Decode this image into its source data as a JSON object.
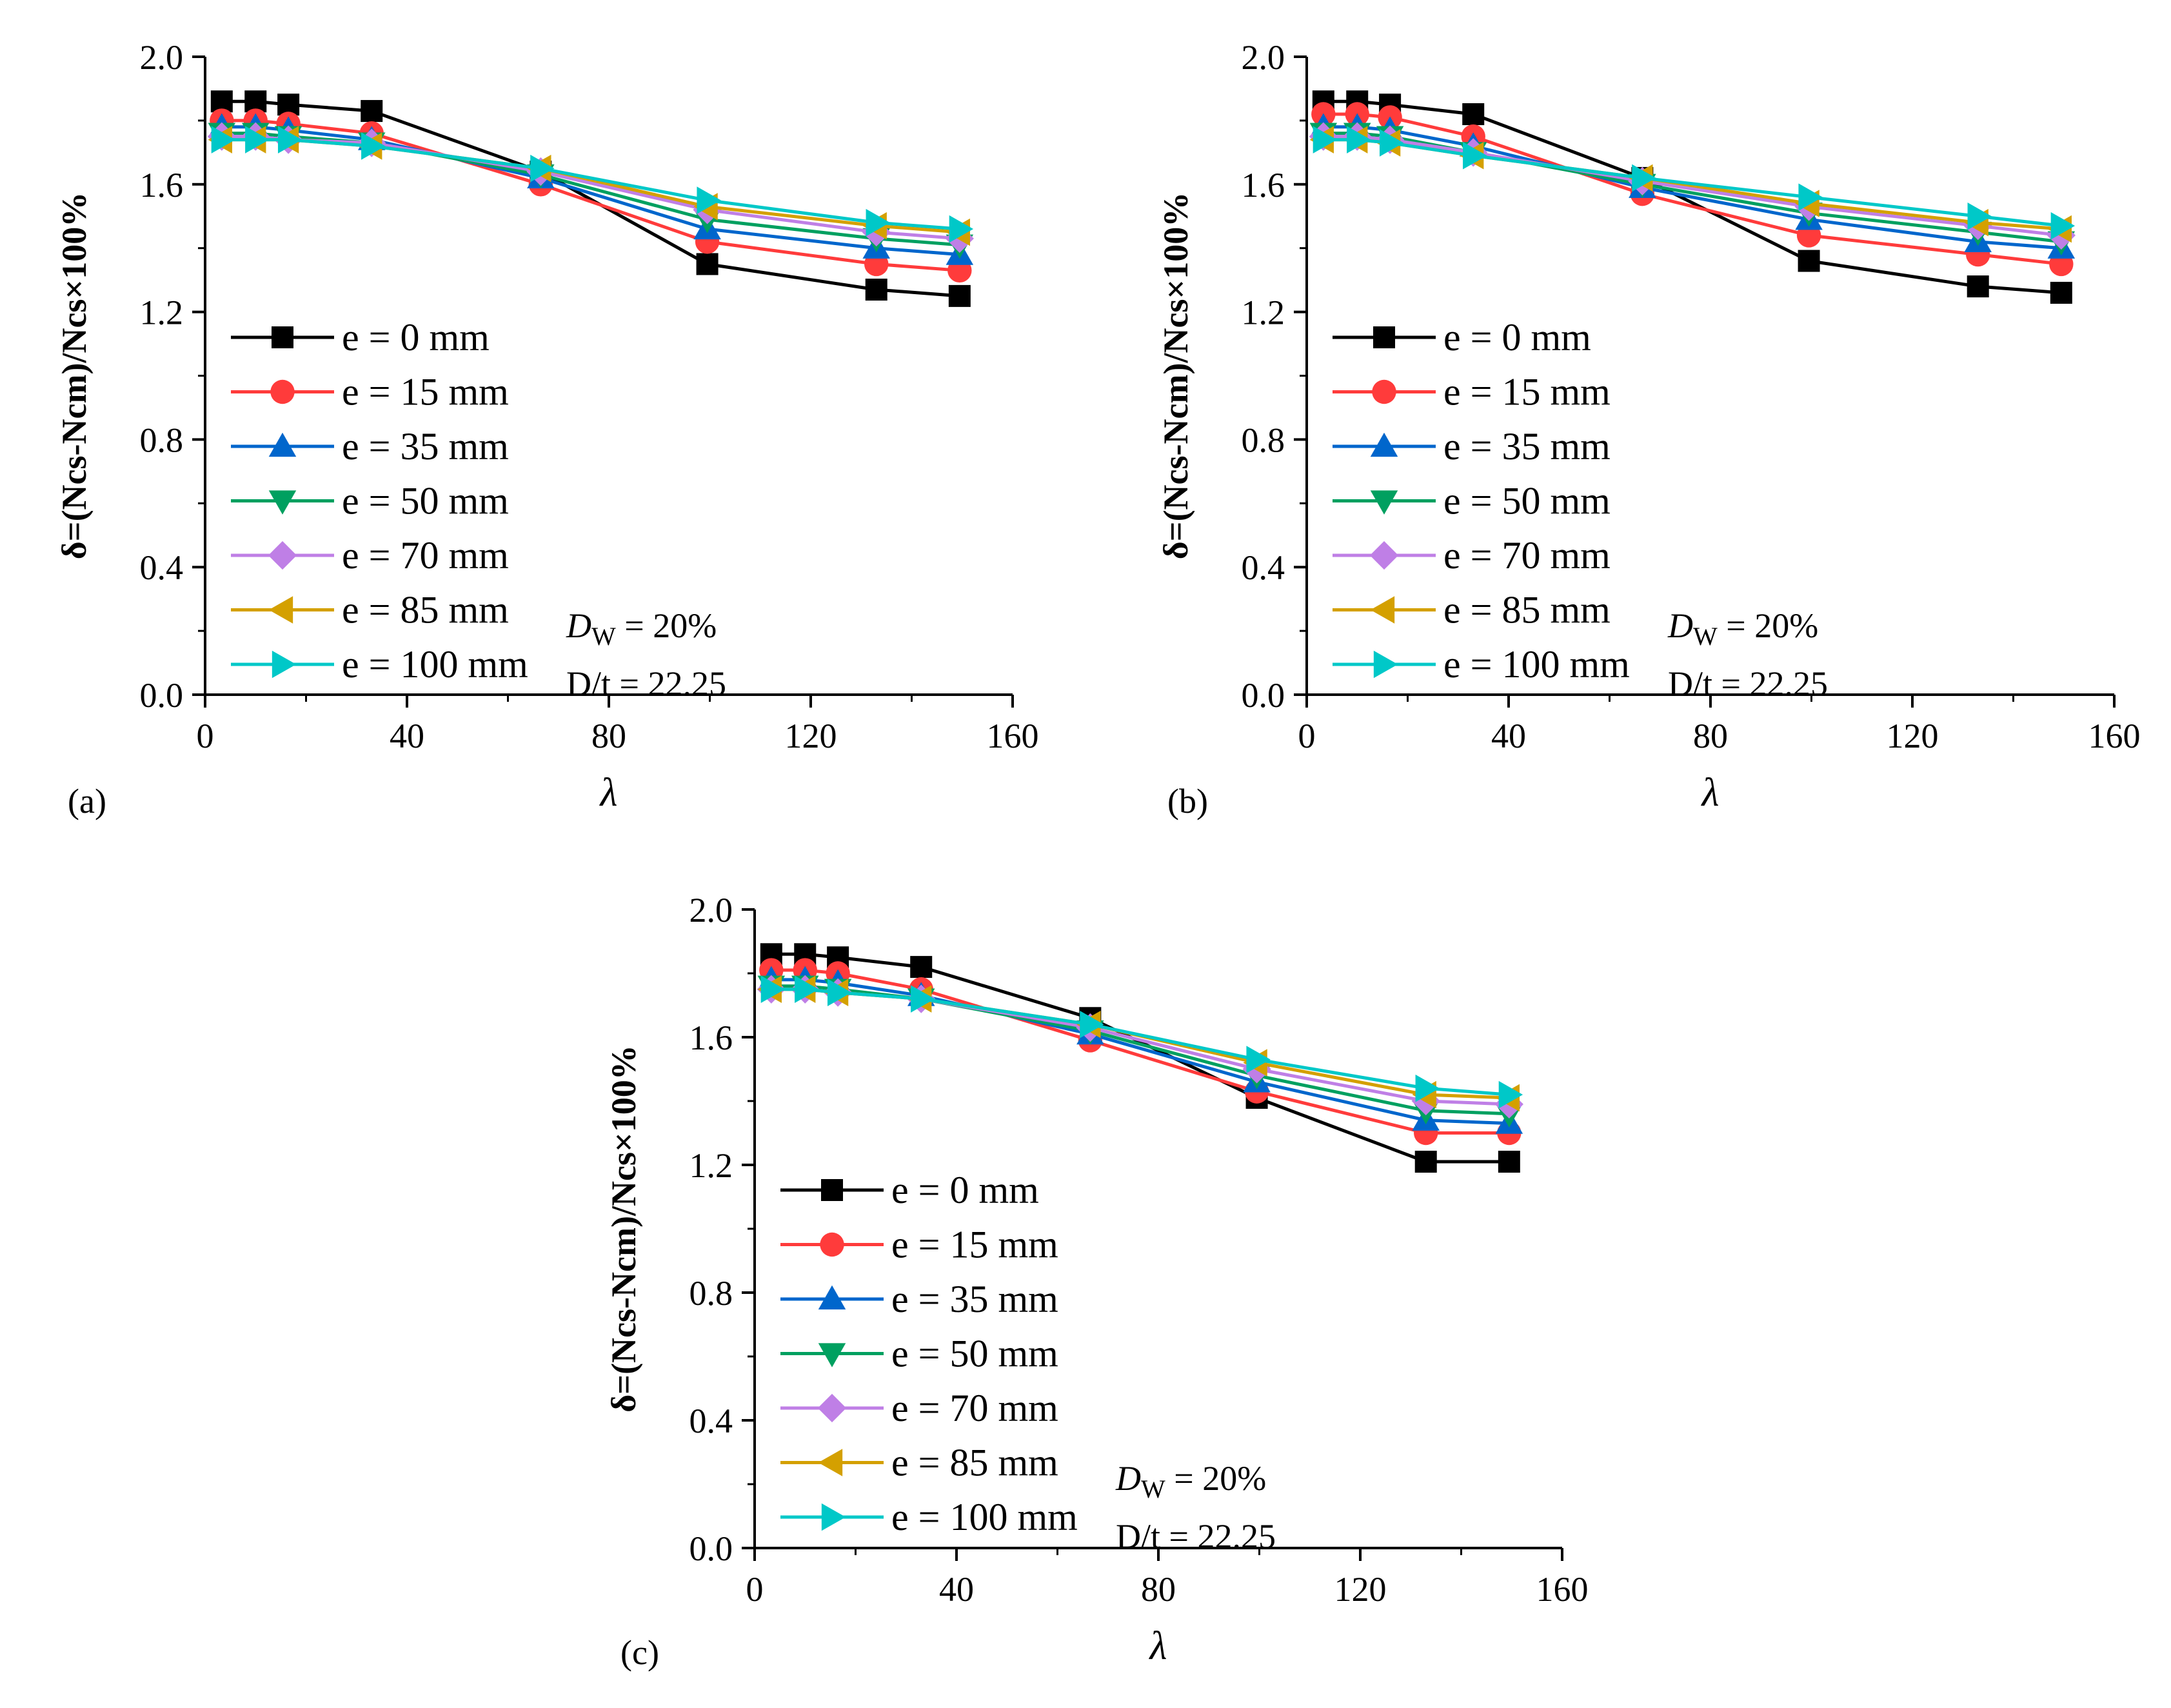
{
  "figure": {
    "series_styles": [
      {
        "marker": "square",
        "color": "#000000"
      },
      {
        "marker": "circle",
        "color": "#ff3b3b"
      },
      {
        "marker": "triangle-up",
        "color": "#0066cc"
      },
      {
        "marker": "triangle-down",
        "color": "#00a060"
      },
      {
        "marker": "diamond",
        "color": "#bf7fe6"
      },
      {
        "marker": "triangle-left",
        "color": "#d4a000"
      },
      {
        "marker": "triangle-right",
        "color": "#00c8c8"
      }
    ]
  },
  "chart_data": [
    {
      "panel": "(a)",
      "type": "line",
      "xlabel": "λ",
      "ylabel": "δ=(Ncs-Ncm)/Ncs×100%",
      "xlim": [
        0,
        160
      ],
      "ylim": [
        0.0,
        2.0
      ],
      "xticks": [
        "0",
        "40",
        "80",
        "120",
        "160"
      ],
      "yticks": [
        "0.0",
        "0.4",
        "0.8",
        "1.2",
        "1.6",
        "2.0"
      ],
      "x": [
        3.3,
        10,
        16.5,
        33,
        66.5,
        99.5,
        133,
        149.5
      ],
      "series": [
        {
          "name": "e = 0 mm",
          "values": [
            1.86,
            1.86,
            1.85,
            1.83,
            1.64,
            1.35,
            1.27,
            1.25
          ]
        },
        {
          "name": "e = 15 mm",
          "values": [
            1.8,
            1.8,
            1.79,
            1.76,
            1.6,
            1.42,
            1.35,
            1.33
          ]
        },
        {
          "name": "e = 35 mm",
          "values": [
            1.78,
            1.78,
            1.77,
            1.74,
            1.62,
            1.46,
            1.4,
            1.38
          ]
        },
        {
          "name": "e = 50 mm",
          "values": [
            1.76,
            1.76,
            1.75,
            1.73,
            1.63,
            1.49,
            1.43,
            1.41
          ]
        },
        {
          "name": "e = 70 mm",
          "values": [
            1.75,
            1.75,
            1.74,
            1.73,
            1.64,
            1.52,
            1.45,
            1.43
          ]
        },
        {
          "name": "e = 85 mm",
          "values": [
            1.74,
            1.74,
            1.74,
            1.72,
            1.65,
            1.53,
            1.47,
            1.45
          ]
        },
        {
          "name": "e = 100 mm",
          "values": [
            1.74,
            1.74,
            1.74,
            1.72,
            1.65,
            1.55,
            1.48,
            1.46
          ]
        }
      ],
      "annotation": {
        "dw_label": "D",
        "dw_sub": "W",
        "dw_value": " = 20%",
        "dt": "D/t = 22.25"
      }
    },
    {
      "panel": "(b)",
      "type": "line",
      "xlabel": "λ",
      "ylabel": "δ=(Ncs-Ncm)/Ncs×100%",
      "xlim": [
        0,
        160
      ],
      "ylim": [
        0.0,
        2.0
      ],
      "xticks": [
        "0",
        "40",
        "80",
        "120",
        "160"
      ],
      "yticks": [
        "0.0",
        "0.4",
        "0.8",
        "1.2",
        "1.6",
        "2.0"
      ],
      "x": [
        3.3,
        10,
        16.5,
        33,
        66.5,
        99.5,
        133,
        149.5
      ],
      "series": [
        {
          "name": "e = 0 mm",
          "values": [
            1.86,
            1.86,
            1.85,
            1.82,
            1.62,
            1.36,
            1.28,
            1.26
          ]
        },
        {
          "name": "e = 15 mm",
          "values": [
            1.82,
            1.82,
            1.81,
            1.75,
            1.57,
            1.44,
            1.38,
            1.35
          ]
        },
        {
          "name": "e = 35 mm",
          "values": [
            1.78,
            1.78,
            1.77,
            1.72,
            1.59,
            1.49,
            1.42,
            1.4
          ]
        },
        {
          "name": "e = 50 mm",
          "values": [
            1.76,
            1.76,
            1.75,
            1.7,
            1.6,
            1.51,
            1.45,
            1.42
          ]
        },
        {
          "name": "e = 70 mm",
          "values": [
            1.75,
            1.75,
            1.74,
            1.7,
            1.61,
            1.53,
            1.47,
            1.44
          ]
        },
        {
          "name": "e = 85 mm",
          "values": [
            1.74,
            1.74,
            1.73,
            1.69,
            1.62,
            1.54,
            1.48,
            1.46
          ]
        },
        {
          "name": "e = 100 mm",
          "values": [
            1.74,
            1.74,
            1.73,
            1.69,
            1.62,
            1.56,
            1.5,
            1.47
          ]
        }
      ],
      "annotation": {
        "dw_label": "D",
        "dw_sub": "W",
        "dw_value": " = 20%",
        "dt": "D/t = 22.25"
      }
    },
    {
      "panel": "(c)",
      "type": "line",
      "xlabel": "λ",
      "ylabel": "δ=(Ncs-Ncm)/Ncs×100%",
      "xlim": [
        0,
        160
      ],
      "ylim": [
        0.0,
        2.0
      ],
      "xticks": [
        "0",
        "40",
        "80",
        "120",
        "160"
      ],
      "yticks": [
        "0.0",
        "0.4",
        "0.8",
        "1.2",
        "1.6",
        "2.0"
      ],
      "x": [
        3.3,
        10,
        16.5,
        33,
        66.5,
        99.5,
        133,
        149.5
      ],
      "series": [
        {
          "name": "e = 0 mm",
          "values": [
            1.86,
            1.86,
            1.85,
            1.82,
            1.66,
            1.41,
            1.21,
            1.21
          ]
        },
        {
          "name": "e = 15 mm",
          "values": [
            1.81,
            1.81,
            1.8,
            1.75,
            1.59,
            1.43,
            1.3,
            1.3
          ]
        },
        {
          "name": "e = 35 mm",
          "values": [
            1.78,
            1.78,
            1.77,
            1.73,
            1.61,
            1.46,
            1.34,
            1.33
          ]
        },
        {
          "name": "e = 50 mm",
          "values": [
            1.76,
            1.76,
            1.75,
            1.72,
            1.62,
            1.48,
            1.37,
            1.36
          ]
        },
        {
          "name": "e = 70 mm",
          "values": [
            1.75,
            1.75,
            1.74,
            1.72,
            1.63,
            1.5,
            1.4,
            1.39
          ]
        },
        {
          "name": "e = 85 mm",
          "values": [
            1.75,
            1.75,
            1.74,
            1.72,
            1.64,
            1.52,
            1.42,
            1.41
          ]
        },
        {
          "name": "e = 100 mm",
          "values": [
            1.75,
            1.75,
            1.74,
            1.72,
            1.64,
            1.53,
            1.44,
            1.42
          ]
        }
      ],
      "annotation": {
        "dw_label": "D",
        "dw_sub": "W",
        "dw_value": " = 20%",
        "dt": "D/t = 22.25"
      }
    }
  ]
}
